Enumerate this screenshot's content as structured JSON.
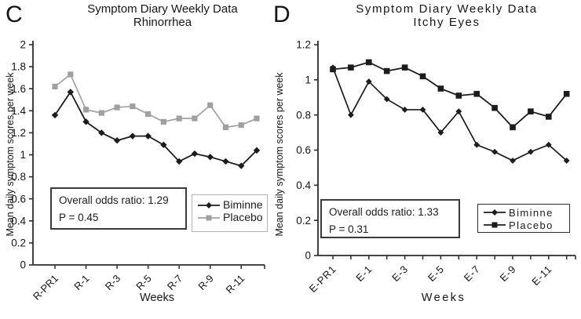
{
  "panel_letters": [
    "C",
    "D"
  ],
  "chart_data": [
    {
      "type": "line",
      "panel": "C",
      "title": "Symptom Diary Weekly Data",
      "subtitle": "Rhinorrhea",
      "xlabel": "Weeks",
      "ylabel": "Mean daily symptom scores per week",
      "ylim": [
        0,
        2
      ],
      "ytick_step": 0.2,
      "ytick_labels": [
        "2",
        "1.8",
        "1.6",
        "1.4",
        "1.2",
        "1",
        "0.8",
        "0.6",
        "0.4",
        "0.2",
        "0"
      ],
      "n_points": 14,
      "xtick_labels": [
        "R-PR1",
        "R-1",
        "R-3",
        "R-5",
        "R-7",
        "R-9",
        "R-11"
      ],
      "xtick_indices": [
        0,
        2,
        4,
        6,
        8,
        10,
        12
      ],
      "grid": false,
      "legend_position": "lower right",
      "series": [
        {
          "name": "Biminne",
          "marker": "diamond",
          "color": "#1c1c1c",
          "values": [
            1.36,
            1.57,
            1.3,
            1.2,
            1.13,
            1.17,
            1.17,
            1.09,
            0.94,
            1.01,
            0.98,
            0.94,
            0.9,
            1.04
          ]
        },
        {
          "name": "Placebo",
          "marker": "square",
          "color": "#a0a0a0",
          "values": [
            1.62,
            1.73,
            1.41,
            1.38,
            1.43,
            1.44,
            1.37,
            1.3,
            1.33,
            1.33,
            1.45,
            1.25,
            1.27,
            1.33
          ]
        }
      ],
      "annotations": [
        "Overall odds ratio: 1.29",
        "P = 0.45"
      ]
    },
    {
      "type": "line",
      "panel": "D",
      "title": "Symptom Diary Weekly Data",
      "subtitle": "Itchy Eyes",
      "xlabel": "Weeks",
      "ylabel": "Mean daily symptom scores per week",
      "ylim": [
        0,
        1.2
      ],
      "ytick_step": 0.2,
      "ytick_labels": [
        "1.2",
        "1",
        "0.8",
        "0.6",
        "0.4",
        "0.2",
        "0"
      ],
      "n_points": 14,
      "xtick_labels": [
        "E-PR1",
        "E-1",
        "E-3",
        "E-5",
        "E-7",
        "E-9",
        "E-11"
      ],
      "xtick_indices": [
        0,
        2,
        4,
        6,
        8,
        10,
        12
      ],
      "grid": false,
      "legend_position": "lower right",
      "series": [
        {
          "name": "Biminne",
          "marker": "diamond",
          "color": "#1c1c1c",
          "values": [
            1.07,
            0.8,
            0.99,
            0.89,
            0.83,
            0.83,
            0.7,
            0.82,
            0.63,
            0.59,
            0.54,
            0.59,
            0.63,
            0.54
          ]
        },
        {
          "name": "Placebo",
          "marker": "square",
          "color": "#1c1c1c",
          "values": [
            1.06,
            1.07,
            1.1,
            1.05,
            1.07,
            1.02,
            0.95,
            0.91,
            0.92,
            0.84,
            0.73,
            0.82,
            0.79,
            0.92
          ]
        }
      ],
      "annotations": [
        "Overall odds ratio: 1.33",
        "P = 0.31"
      ]
    }
  ]
}
